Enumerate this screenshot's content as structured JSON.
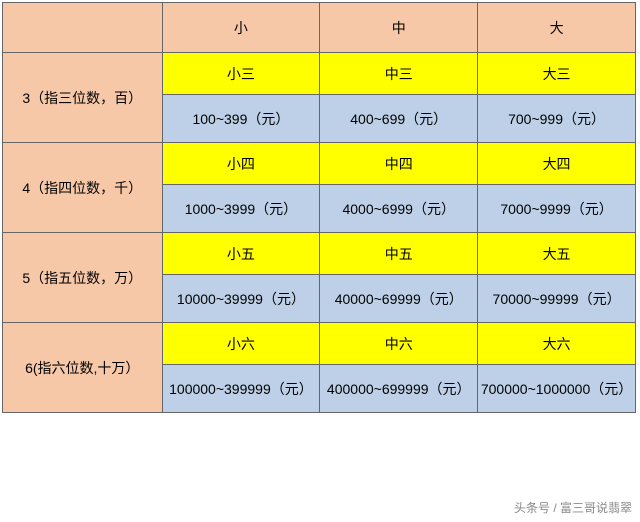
{
  "colors": {
    "header_bg": "#f7c8a8",
    "label_bg": "#ffff00",
    "range_bg": "#bdd0e7",
    "border": "#666666",
    "text": "#000000",
    "watermark": "#888888"
  },
  "typography": {
    "font_family": "Microsoft YaHei",
    "body_fontsize": 14,
    "watermark_fontsize": 12
  },
  "header": {
    "blank": "",
    "cols": [
      "小",
      "中",
      "大"
    ]
  },
  "groups": [
    {
      "rowhead": "3（指三位数，百）",
      "labels": [
        "小三",
        "中三",
        "大三"
      ],
      "ranges": [
        "100~399（元）",
        "400~699（元）",
        "700~999（元）"
      ]
    },
    {
      "rowhead": "4（指四位数，千）",
      "labels": [
        "小四",
        "中四",
        "大四"
      ],
      "ranges": [
        "1000~3999（元）",
        "4000~6999（元）",
        "7000~9999（元）"
      ]
    },
    {
      "rowhead": "5（指五位数，万）",
      "labels": [
        "小五",
        "中五",
        "大五"
      ],
      "ranges": [
        "10000~39999（元）",
        "40000~69999（元）",
        "70000~99999（元）"
      ]
    },
    {
      "rowhead": "6(指六位数,十万）",
      "labels": [
        "小六",
        "中六",
        "大六"
      ],
      "ranges": [
        "100000~399999（元）",
        "400000~699999（元）",
        "700000~1000000（元）"
      ]
    }
  ],
  "watermark": "头条号 / 富三哥说翡翠"
}
